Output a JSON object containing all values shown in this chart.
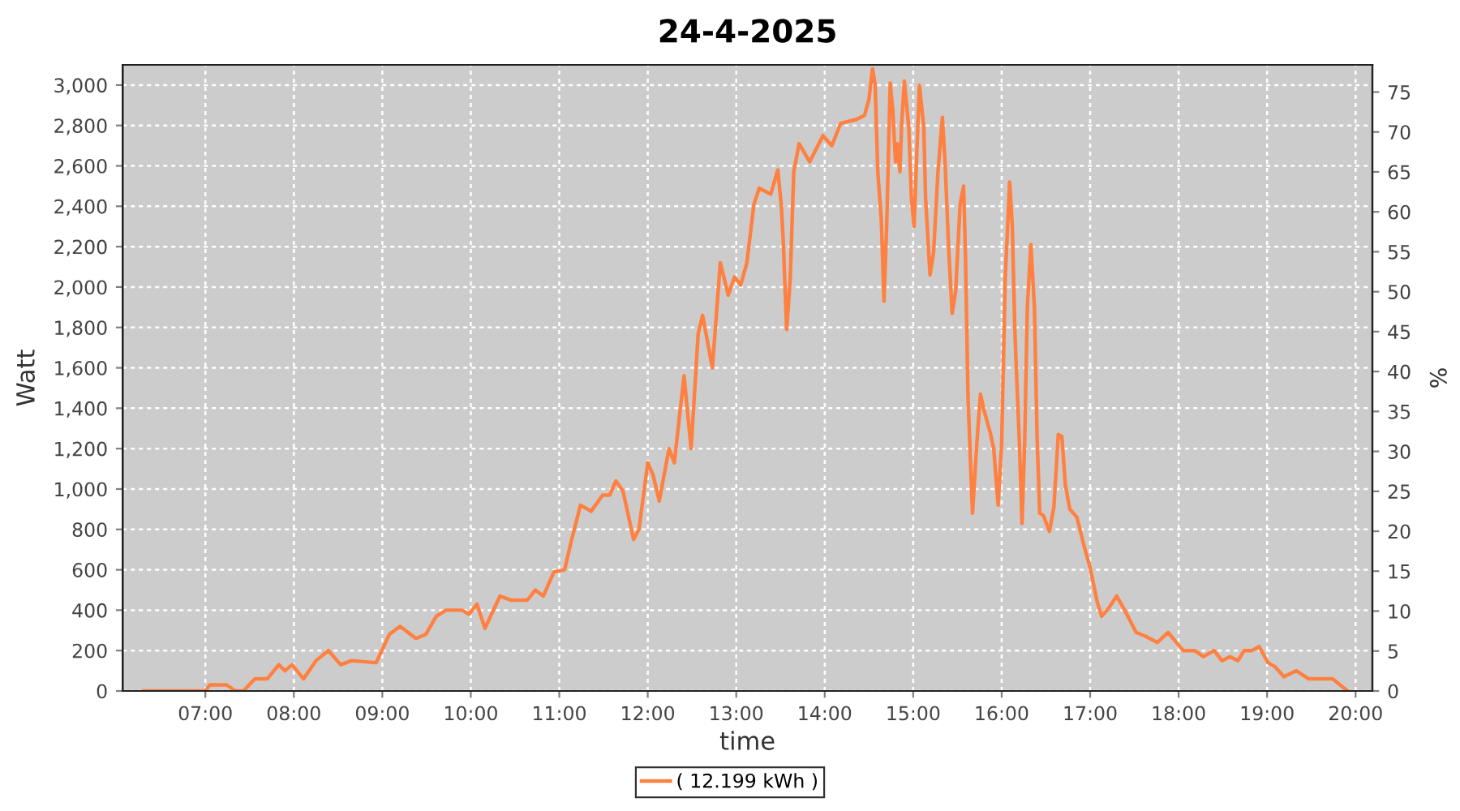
{
  "chart_data": {
    "type": "line",
    "title": "24-4-2025",
    "xlabel": "time",
    "ylabel": "Watt",
    "y2label": "%",
    "series": [
      {
        "name": "( 12.199 kWh )",
        "color": "#ff8040",
        "x": [
          6.3,
          7.0,
          7.05,
          7.24,
          7.34,
          7.43,
          7.56,
          7.7,
          7.83,
          7.9,
          7.98,
          8.11,
          8.25,
          8.39,
          8.53,
          8.65,
          8.93,
          9.08,
          9.2,
          9.38,
          9.49,
          9.61,
          9.72,
          9.9,
          9.98,
          10.07,
          10.16,
          10.33,
          10.45,
          10.64,
          10.73,
          10.82,
          10.94,
          11.06,
          11.14,
          11.24,
          11.36,
          11.49,
          11.57,
          11.64,
          11.72,
          11.84,
          11.9,
          12.0,
          12.06,
          12.13,
          12.24,
          12.3,
          12.41,
          12.49,
          12.57,
          12.62,
          12.73,
          12.82,
          12.91,
          12.98,
          13.05,
          13.12,
          13.2,
          13.26,
          13.39,
          13.47,
          13.51,
          13.53,
          13.57,
          13.61,
          13.65,
          13.71,
          13.83,
          13.98,
          14.08,
          14.18,
          14.36,
          14.45,
          14.5,
          14.54,
          14.57,
          14.6,
          14.64,
          14.67,
          14.7,
          14.74,
          14.77,
          14.8,
          14.82,
          14.85,
          14.87,
          14.9,
          14.95,
          14.98,
          15.01,
          15.04,
          15.07,
          15.12,
          15.14,
          15.19,
          15.23,
          15.28,
          15.33,
          15.36,
          15.4,
          15.44,
          15.48,
          15.53,
          15.57,
          15.59,
          15.62,
          15.67,
          15.72,
          15.76,
          15.8,
          15.87,
          15.91,
          15.96,
          16.0,
          16.04,
          16.09,
          16.12,
          16.15,
          16.2,
          16.23,
          16.26,
          16.29,
          16.33,
          16.37,
          16.4,
          16.43,
          16.47,
          16.54,
          16.59,
          16.64,
          16.68,
          16.72,
          16.77,
          16.85,
          16.93,
          17.0,
          17.08,
          17.13,
          17.21,
          17.3,
          17.39,
          17.52,
          17.63,
          17.76,
          17.88,
          18.05,
          18.18,
          18.28,
          18.4,
          18.49,
          18.58,
          18.67,
          18.74,
          18.83,
          18.91,
          19.01,
          19.09,
          19.19,
          19.33,
          19.47,
          19.74,
          19.91
        ],
        "values": [
          0,
          0,
          30,
          30,
          0,
          0,
          60,
          60,
          130,
          100,
          130,
          60,
          150,
          200,
          130,
          150,
          140,
          280,
          320,
          260,
          280,
          370,
          400,
          400,
          380,
          430,
          310,
          470,
          450,
          450,
          500,
          470,
          590,
          600,
          750,
          920,
          890,
          970,
          970,
          1040,
          990,
          750,
          800,
          1130,
          1070,
          940,
          1200,
          1130,
          1560,
          1200,
          1770,
          1860,
          1600,
          2120,
          1960,
          2050,
          2010,
          2120,
          2410,
          2490,
          2460,
          2580,
          2400,
          2240,
          1790,
          2040,
          2570,
          2710,
          2620,
          2750,
          2700,
          2810,
          2830,
          2850,
          2930,
          3080,
          3000,
          2570,
          2330,
          1930,
          2300,
          3010,
          2870,
          2620,
          2710,
          2570,
          2810,
          3020,
          2790,
          2440,
          2300,
          2650,
          3000,
          2790,
          2440,
          2060,
          2170,
          2570,
          2840,
          2620,
          2200,
          1870,
          1980,
          2410,
          2500,
          2170,
          1450,
          880,
          1230,
          1470,
          1390,
          1280,
          1200,
          920,
          1230,
          2040,
          2520,
          2300,
          1770,
          1230,
          830,
          1230,
          1900,
          2210,
          1900,
          1260,
          880,
          870,
          790,
          910,
          1270,
          1260,
          1020,
          900,
          860,
          720,
          610,
          440,
          370,
          410,
          470,
          400,
          290,
          270,
          240,
          290,
          200,
          200,
          170,
          200,
          150,
          170,
          150,
          200,
          200,
          220,
          140,
          120,
          70,
          100,
          60,
          60,
          0
        ]
      }
    ],
    "xlim": [
      6.065,
      20.19
    ],
    "xticks": [
      {
        "value": 7,
        "label": "07:00"
      },
      {
        "value": 8,
        "label": "08:00"
      },
      {
        "value": 9,
        "label": "09:00"
      },
      {
        "value": 10,
        "label": "10:00"
      },
      {
        "value": 11,
        "label": "11:00"
      },
      {
        "value": 12,
        "label": "12:00"
      },
      {
        "value": 13,
        "label": "13:00"
      },
      {
        "value": 14,
        "label": "14:00"
      },
      {
        "value": 15,
        "label": "15:00"
      },
      {
        "value": 16,
        "label": "16:00"
      },
      {
        "value": 17,
        "label": "17:00"
      },
      {
        "value": 18,
        "label": "18:00"
      },
      {
        "value": 19,
        "label": "19:00"
      },
      {
        "value": 20,
        "label": "20:00"
      }
    ],
    "ylim": [
      0,
      3100
    ],
    "yticks": [
      0,
      200,
      400,
      600,
      800,
      {
        "value": 1000,
        "label": "1,000"
      },
      {
        "value": 1200,
        "label": "1,200"
      },
      {
        "value": 1400,
        "label": "1,400"
      },
      {
        "value": 1600,
        "label": "1,600"
      },
      {
        "value": 1800,
        "label": "1,800"
      },
      {
        "value": 2000,
        "label": "2,000"
      },
      {
        "value": 2200,
        "label": "2,200"
      },
      {
        "value": 2400,
        "label": "2,400"
      },
      {
        "value": 2600,
        "label": "2,600"
      },
      {
        "value": 2800,
        "label": "2,800"
      },
      {
        "value": 3000,
        "label": "3,000"
      }
    ],
    "y2lim": [
      0,
      78.4
    ],
    "y2ticks": [
      0,
      5,
      10,
      15,
      20,
      25,
      30,
      35,
      40,
      45,
      50,
      55,
      60,
      65,
      70,
      75
    ],
    "grid": true,
    "legend": "bottom"
  }
}
